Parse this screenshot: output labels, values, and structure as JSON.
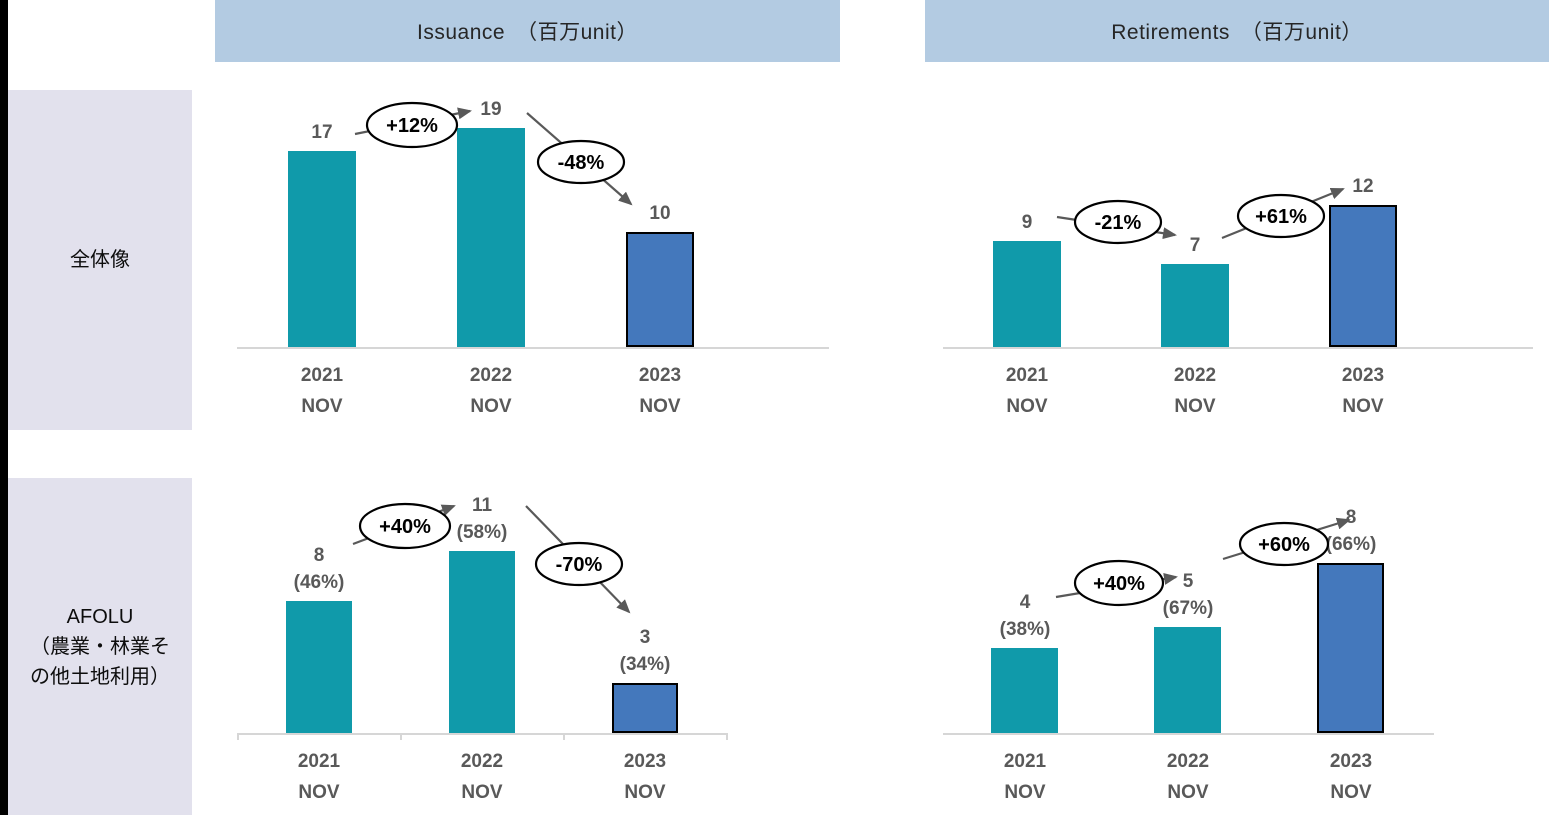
{
  "page": {
    "teal": "#109AAA",
    "blue": "#4478BC",
    "bar_outline": "#000000",
    "header_bg": "#B3CBE2",
    "rowlabel_bg": "#E2E1ED",
    "axis_color": "#D6D6D6",
    "arrow_color": "#595959",
    "label_color": "#595959"
  },
  "column_headers": [
    {
      "label": "Issuance　（百万unit）"
    },
    {
      "label": "Retirements　（百万unit）"
    }
  ],
  "row_headers": [
    {
      "lines": [
        "全体像"
      ]
    },
    {
      "lines": [
        "AFOLU",
        "（農業・林業そ",
        "の他土地利用）"
      ]
    }
  ],
  "chart_data": [
    {
      "type": "bar",
      "title": "Issuance 全体像",
      "unit": "百万unit",
      "categories": [
        "2021",
        "2022",
        "2023"
      ],
      "category_sub": "NOV",
      "values": [
        17,
        19,
        10
      ],
      "bar_labels": [
        [
          "17"
        ],
        [
          "19"
        ],
        [
          "10"
        ]
      ],
      "bar_styles": [
        "teal",
        "teal",
        "blue-outlined"
      ],
      "annotations": [
        {
          "label": "+12%",
          "between": "2021→2022"
        },
        {
          "label": "-48%",
          "between": "2022→2023"
        }
      ],
      "ylim": [
        0,
        22
      ],
      "grid": false,
      "legend": "none"
    },
    {
      "type": "bar",
      "title": "Retirements 全体像",
      "unit": "百万unit",
      "categories": [
        "2021",
        "2022",
        "2023"
      ],
      "category_sub": "NOV",
      "values": [
        9,
        7,
        12
      ],
      "bar_labels": [
        [
          "9"
        ],
        [
          "7"
        ],
        [
          "12"
        ]
      ],
      "bar_styles": [
        "teal",
        "teal",
        "blue-outlined"
      ],
      "annotations": [
        {
          "label": "-21%",
          "between": "2021→2022"
        },
        {
          "label": "+61%",
          "between": "2022→2023"
        }
      ],
      "ylim": [
        0,
        22
      ],
      "grid": false,
      "legend": "none"
    },
    {
      "type": "bar",
      "title": "Issuance AFOLU（農業・林業その他土地利用）",
      "unit": "百万unit",
      "categories": [
        "2021",
        "2022",
        "2023"
      ],
      "category_sub": "NOV",
      "values": [
        8,
        11,
        3
      ],
      "shares": [
        "46%",
        "58%",
        "34%"
      ],
      "bar_labels": [
        [
          "8",
          "(46%)"
        ],
        [
          "11",
          "(58%)"
        ],
        [
          "3",
          "(34%)"
        ]
      ],
      "bar_styles": [
        "teal",
        "teal",
        "blue-outlined"
      ],
      "annotations": [
        {
          "label": "+40%",
          "between": "2021→2022"
        },
        {
          "label": "-70%",
          "between": "2022→2023"
        }
      ],
      "ylim": [
        0,
        15
      ],
      "grid": false,
      "legend": "none"
    },
    {
      "type": "bar",
      "title": "Retirements AFOLU（農業・林業その他土地利用）",
      "unit": "百万unit",
      "categories": [
        "2021",
        "2022",
        "2023"
      ],
      "category_sub": "NOV",
      "values": [
        4,
        5,
        8
      ],
      "shares": [
        "38%",
        "67%",
        "66%"
      ],
      "bar_labels": [
        [
          "4",
          "(38%)"
        ],
        [
          "5",
          "(67%)"
        ],
        [
          "8",
          "(66%)"
        ]
      ],
      "bar_styles": [
        "teal",
        "teal",
        "blue-outlined"
      ],
      "annotations": [
        {
          "label": "+40%",
          "between": "2021→2022"
        },
        {
          "label": "+60%",
          "between": "2022→2023"
        }
      ],
      "ylim": [
        0,
        11
      ],
      "grid": false,
      "legend": "none"
    }
  ]
}
